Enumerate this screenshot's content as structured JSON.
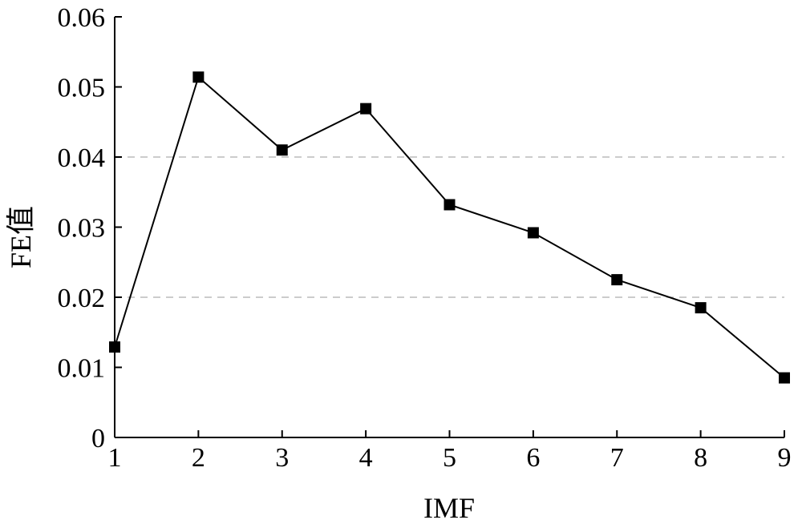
{
  "chart_data": {
    "type": "line",
    "title": "",
    "xlabel": "IMF",
    "ylabel": "FE值",
    "x": [
      1,
      2,
      3,
      4,
      5,
      6,
      7,
      8,
      9
    ],
    "series": [
      {
        "values": [
          0.0129,
          0.0514,
          0.041,
          0.0469,
          0.0332,
          0.0292,
          0.0225,
          0.0185,
          0.0085
        ]
      }
    ],
    "xlim": [
      1,
      9
    ],
    "ylim": [
      0,
      0.06
    ],
    "x_ticks": [
      "1",
      "2",
      "3",
      "4",
      "5",
      "6",
      "7",
      "8",
      "9"
    ],
    "y_ticks": [
      "0",
      "0.01",
      "0.02",
      "0.03",
      "0.04",
      "0.05",
      "0.06"
    ],
    "gridlines_y": [
      0.02,
      0.04
    ],
    "grid": "dashed horizontal at 0.02 and 0.04",
    "marker": "filled square",
    "colors": {
      "line": "#000000",
      "grid": "#bbbbbb"
    }
  }
}
